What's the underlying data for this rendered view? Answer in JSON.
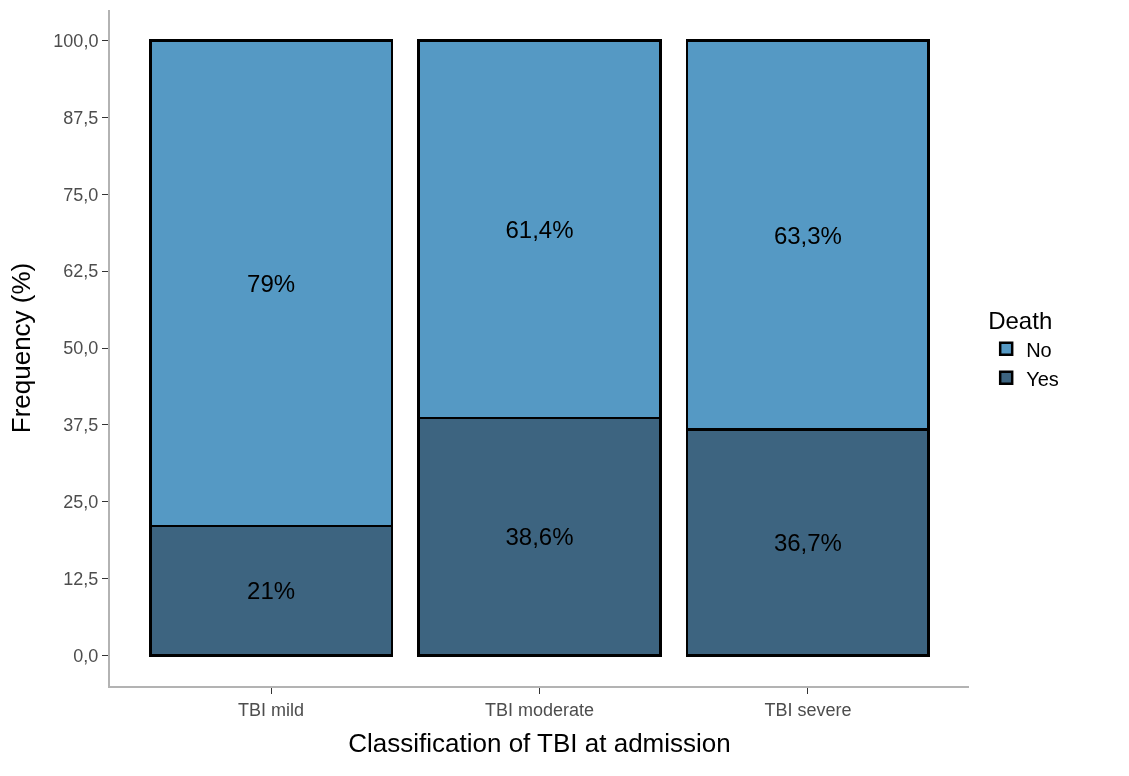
{
  "chart_data": {
    "type": "bar",
    "xlabel": "Classification of TBI at admission",
    "ylabel": "Frequency (%)",
    "legend_title": "Death",
    "categories": [
      "TBI mild",
      "TBI moderate",
      "TBI severe"
    ],
    "stacked": true,
    "series": [
      {
        "name": "Yes",
        "color": "#3d6480",
        "values": [
          21,
          38.6,
          36.7
        ],
        "value_labels": [
          "21%",
          "38,6%",
          "36,7%"
        ]
      },
      {
        "name": "No",
        "color": "#5599c4",
        "values": [
          79,
          61.4,
          63.3
        ],
        "value_labels": [
          "79%",
          "61,4%",
          "63,3%"
        ]
      }
    ],
    "ylim": [
      -5,
      105
    ],
    "yticks": [
      {
        "value": 0,
        "label": "0,0"
      },
      {
        "value": 12.5,
        "label": "12,5"
      },
      {
        "value": 25,
        "label": "25,0"
      },
      {
        "value": 37.5,
        "label": "37,5"
      },
      {
        "value": 50,
        "label": "50,0"
      },
      {
        "value": 62.5,
        "label": "62,5"
      },
      {
        "value": 75,
        "label": "75,0"
      },
      {
        "value": 87.5,
        "label": "87,5"
      },
      {
        "value": 100,
        "label": "100,0"
      }
    ],
    "legend": "right"
  }
}
